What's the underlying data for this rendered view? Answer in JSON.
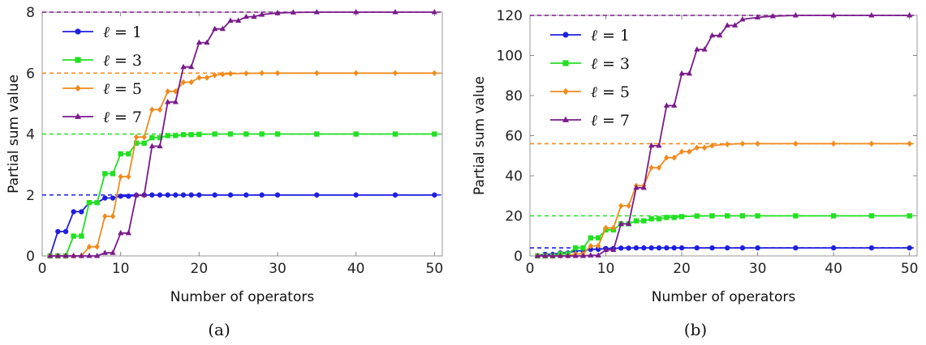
{
  "chart_data": [
    {
      "type": "line",
      "panel_label": "(a)",
      "xlabel": "Number of operators",
      "ylabel": "Partial sum value",
      "xlim": [
        0,
        51
      ],
      "ylim": [
        0,
        8
      ],
      "xticks": [
        0,
        10,
        20,
        30,
        40,
        50
      ],
      "yticks": [
        0,
        2,
        4,
        6,
        8
      ],
      "legend_position": "top-left",
      "series": [
        {
          "name": "ℓ = 1",
          "label_var": "ℓ",
          "label_val": "1",
          "color": "#1f1fe0",
          "marker": "circle",
          "limit": 2,
          "x": [
            1,
            2,
            3,
            4,
            5,
            6,
            7,
            8,
            9,
            10,
            11,
            12,
            13,
            14,
            15,
            16,
            17,
            18,
            19,
            20,
            22,
            24,
            26,
            28,
            30,
            35,
            40,
            45,
            50
          ],
          "y": [
            0,
            0.8,
            0.8,
            1.45,
            1.45,
            1.75,
            1.75,
            1.9,
            1.9,
            1.96,
            1.96,
            1.99,
            2,
            2,
            2,
            2,
            2,
            2,
            2,
            2,
            2,
            2,
            2,
            2,
            2,
            2,
            2,
            2,
            2
          ]
        },
        {
          "name": "ℓ = 3",
          "label_var": "ℓ",
          "label_val": "3",
          "color": "#22e022",
          "marker": "square",
          "limit": 4,
          "x": [
            1,
            2,
            3,
            4,
            5,
            6,
            7,
            8,
            9,
            10,
            11,
            12,
            13,
            14,
            15,
            16,
            17,
            18,
            19,
            20,
            22,
            24,
            26,
            28,
            30,
            35,
            40,
            45,
            50
          ],
          "y": [
            0,
            0,
            0,
            0.65,
            0.65,
            1.75,
            1.75,
            2.7,
            2.7,
            3.35,
            3.35,
            3.7,
            3.7,
            3.88,
            3.88,
            3.95,
            3.95,
            3.98,
            3.98,
            3.99,
            4,
            4,
            4,
            4,
            4,
            4,
            4,
            4,
            4
          ]
        },
        {
          "name": "ℓ = 5",
          "label_var": "ℓ",
          "label_val": "5",
          "color": "#f08a1c",
          "marker": "diamond",
          "limit": 6,
          "x": [
            1,
            2,
            3,
            4,
            5,
            6,
            7,
            8,
            9,
            10,
            11,
            12,
            13,
            14,
            15,
            16,
            17,
            18,
            19,
            20,
            21,
            22,
            23,
            24,
            26,
            28,
            30,
            35,
            40,
            45,
            50
          ],
          "y": [
            0,
            0,
            0,
            0,
            0,
            0.3,
            0.3,
            1.3,
            1.3,
            2.6,
            2.6,
            3.9,
            3.9,
            4.8,
            4.8,
            5.4,
            5.4,
            5.7,
            5.7,
            5.85,
            5.85,
            5.93,
            5.96,
            5.98,
            5.99,
            6,
            6,
            6,
            6,
            6,
            6
          ]
        },
        {
          "name": "ℓ = 7",
          "label_var": "ℓ",
          "label_val": "7",
          "color": "#7a1a8c",
          "marker": "triangle",
          "limit": 8,
          "x": [
            1,
            2,
            3,
            4,
            5,
            6,
            7,
            8,
            9,
            10,
            11,
            12,
            13,
            14,
            15,
            16,
            17,
            18,
            19,
            20,
            21,
            22,
            23,
            24,
            25,
            26,
            27,
            28,
            30,
            32,
            35,
            40,
            45,
            50
          ],
          "y": [
            0,
            0,
            0,
            0,
            0,
            0,
            0,
            0.1,
            0.1,
            0.75,
            0.75,
            2.0,
            2.0,
            3.6,
            3.6,
            5.05,
            5.05,
            6.2,
            6.2,
            7.0,
            7.0,
            7.45,
            7.45,
            7.72,
            7.72,
            7.85,
            7.85,
            7.92,
            7.97,
            7.99,
            8,
            8,
            8,
            8
          ]
        }
      ]
    },
    {
      "type": "line",
      "panel_label": "(b)",
      "xlabel": "Number of operators",
      "ylabel": "Partial sum value",
      "xlim": [
        0,
        51
      ],
      "ylim": [
        0,
        120
      ],
      "xticks": [
        0,
        10,
        20,
        30,
        40,
        50
      ],
      "yticks": [
        0,
        20,
        40,
        60,
        80,
        100,
        120
      ],
      "legend_position": "top-left",
      "series": [
        {
          "name": "ℓ = 1",
          "label_var": "ℓ",
          "label_val": "1",
          "color": "#1f1fe0",
          "marker": "circle",
          "limit": 4,
          "x": [
            1,
            2,
            3,
            4,
            5,
            6,
            7,
            8,
            9,
            10,
            11,
            12,
            13,
            14,
            15,
            16,
            17,
            18,
            19,
            20,
            22,
            24,
            26,
            28,
            30,
            35,
            40,
            45,
            50
          ],
          "y": [
            0,
            0.8,
            0.8,
            1.5,
            1.5,
            2.6,
            2.6,
            3.3,
            3.3,
            3.7,
            3.7,
            3.9,
            3.9,
            4,
            4,
            4,
            4,
            4,
            4,
            4,
            4,
            4,
            4,
            4,
            4,
            4,
            4,
            4,
            4
          ]
        },
        {
          "name": "ℓ = 3",
          "label_var": "ℓ",
          "label_val": "3",
          "color": "#22e022",
          "marker": "square",
          "limit": 20,
          "x": [
            1,
            2,
            3,
            4,
            5,
            6,
            7,
            8,
            9,
            10,
            11,
            12,
            13,
            14,
            15,
            16,
            17,
            18,
            19,
            20,
            22,
            24,
            26,
            28,
            30,
            35,
            40,
            45,
            50
          ],
          "y": [
            0,
            0,
            0,
            1,
            1,
            4,
            4,
            9,
            9,
            13,
            13,
            16,
            16,
            17.5,
            17.5,
            18.5,
            18.5,
            19.2,
            19.2,
            19.6,
            19.9,
            20,
            20,
            20,
            20,
            20,
            20,
            20,
            20
          ]
        },
        {
          "name": "ℓ = 5",
          "label_var": "ℓ",
          "label_val": "5",
          "color": "#f08a1c",
          "marker": "diamond",
          "limit": 56,
          "x": [
            1,
            2,
            3,
            4,
            5,
            6,
            7,
            8,
            9,
            10,
            11,
            12,
            13,
            14,
            15,
            16,
            17,
            18,
            19,
            20,
            21,
            22,
            23,
            24,
            26,
            28,
            30,
            35,
            40,
            45,
            50
          ],
          "y": [
            0,
            0,
            0,
            0,
            0,
            1,
            1,
            5,
            5,
            14,
            14,
            25,
            25,
            35,
            35,
            44,
            44,
            49,
            49,
            52,
            52,
            54,
            54,
            55,
            55.7,
            56,
            56,
            56,
            56,
            56,
            56
          ]
        },
        {
          "name": "ℓ = 7",
          "label_var": "ℓ",
          "label_val": "7",
          "color": "#7a1a8c",
          "marker": "triangle",
          "limit": 120,
          "x": [
            1,
            2,
            3,
            4,
            5,
            6,
            7,
            8,
            9,
            10,
            11,
            12,
            13,
            14,
            15,
            16,
            17,
            18,
            19,
            20,
            21,
            22,
            23,
            24,
            25,
            26,
            27,
            28,
            30,
            32,
            35,
            40,
            45,
            50
          ],
          "y": [
            0,
            0,
            0,
            0,
            0,
            0,
            0,
            0.3,
            0.3,
            3,
            3,
            16,
            16,
            34,
            34,
            55,
            55,
            75,
            75,
            91,
            91,
            103,
            103,
            110,
            110,
            115,
            115,
            118,
            119,
            119.6,
            120,
            120,
            120,
            120
          ]
        }
      ]
    }
  ]
}
